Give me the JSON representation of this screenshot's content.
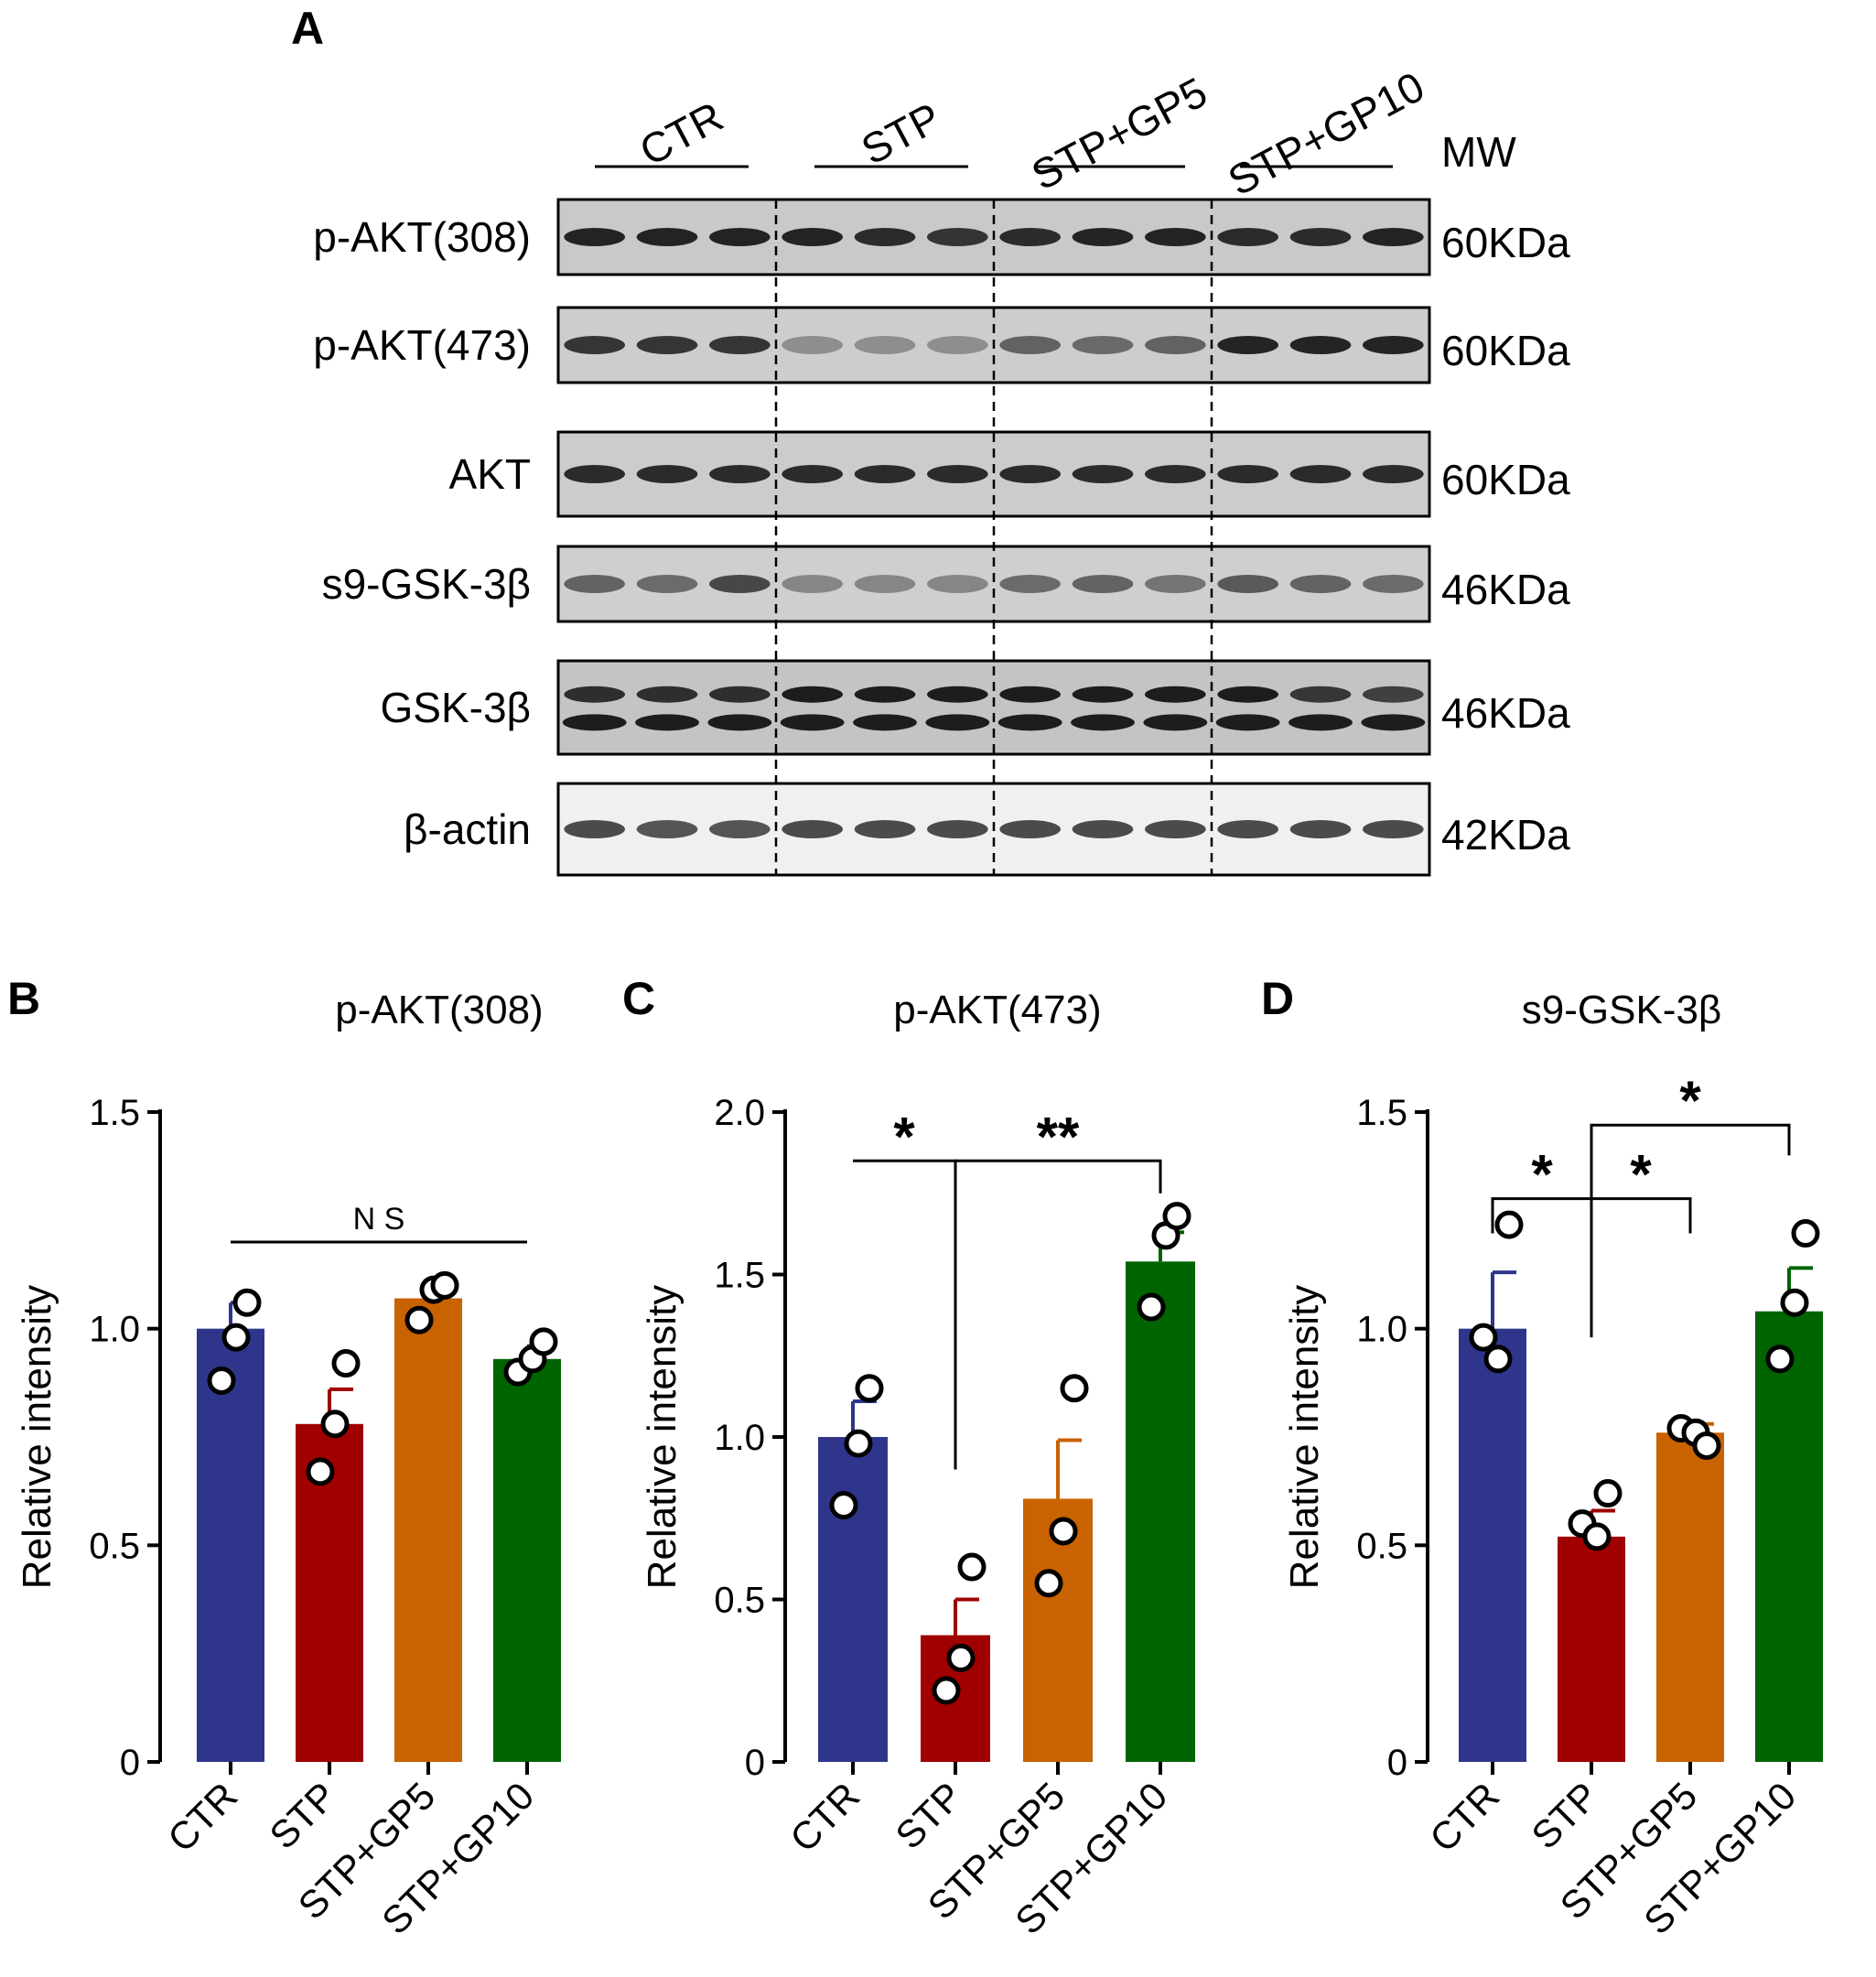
{
  "figure": {
    "panel_letters": [
      "A",
      "B",
      "C",
      "D"
    ]
  },
  "blot": {
    "groups": [
      "CTR",
      "STP",
      "STP+GP5",
      "STP+GP10"
    ],
    "mw_header": "MW",
    "lanes_per_group": 3,
    "rows": [
      {
        "label": "p-AKT(308)",
        "mw": "60KDa",
        "bg": "#c9c9c9",
        "band_color": "#1a1a1a",
        "intensity": [
          0.95,
          0.95,
          0.95,
          0.95,
          0.9,
          0.85,
          0.9,
          0.95,
          0.95,
          0.9,
          0.9,
          0.95
        ]
      },
      {
        "label": "p-AKT(473)",
        "mw": "60KDa",
        "bg": "#cdcdcd",
        "band_color": "#1a1a1a",
        "intensity": [
          0.85,
          0.85,
          0.85,
          0.35,
          0.35,
          0.35,
          0.6,
          0.55,
          0.6,
          0.95,
          0.95,
          0.95
        ]
      },
      {
        "label": "AKT",
        "mw": "60KDa",
        "bg": "#cccccc",
        "band_color": "#1a1a1a",
        "intensity": [
          0.9,
          0.9,
          0.9,
          0.9,
          0.9,
          0.9,
          0.9,
          0.9,
          0.9,
          0.9,
          0.9,
          0.9
        ]
      },
      {
        "label": "s9-GSK-3β",
        "mw": "46KDa",
        "bg": "#cfcfcf",
        "band_color": "#1a1a1a",
        "intensity": [
          0.6,
          0.55,
          0.75,
          0.4,
          0.4,
          0.4,
          0.55,
          0.6,
          0.5,
          0.65,
          0.6,
          0.55
        ]
      },
      {
        "label": "GSK-3β",
        "mw": "46KDa",
        "bg": "#c4c4c4",
        "band_color": "#141414",
        "intensity": [
          0.85,
          0.85,
          0.85,
          0.95,
          0.95,
          0.95,
          0.95,
          0.95,
          0.95,
          0.95,
          0.8,
          0.75
        ],
        "double": true
      },
      {
        "label": "β-actin",
        "mw": "42KDa",
        "bg": "#f0f0f0",
        "band_color": "#222222",
        "intensity": [
          0.8,
          0.75,
          0.75,
          0.8,
          0.8,
          0.8,
          0.8,
          0.8,
          0.8,
          0.8,
          0.8,
          0.8
        ]
      }
    ]
  },
  "chart_data": [
    {
      "panel": "B",
      "type": "bar",
      "title": "p-AKT(308)",
      "ylabel": "Relative intensity",
      "categories": [
        "CTR",
        "STP",
        "STP+GP5",
        "STP+GP10"
      ],
      "values": [
        1.0,
        0.78,
        1.07,
        0.93
      ],
      "errors": [
        0.06,
        0.08,
        0.03,
        0.03
      ],
      "points": [
        [
          0.88,
          0.98,
          1.06
        ],
        [
          0.67,
          0.78,
          0.92
        ],
        [
          1.02,
          1.09,
          1.1
        ],
        [
          0.9,
          0.93,
          0.97
        ]
      ],
      "ylim": [
        0,
        1.5
      ],
      "yticks": [
        0,
        0.5,
        1.0,
        1.5
      ],
      "ytick_labels": [
        "0",
        "0.5",
        "1.0",
        "1.5"
      ],
      "colors": [
        "#2e358b",
        "#a00000",
        "#c96200",
        "#006400"
      ],
      "annotations": [
        {
          "label": "N S",
          "from": 0,
          "to": 3,
          "y": 1.2,
          "type": "line"
        }
      ]
    },
    {
      "panel": "C",
      "type": "bar",
      "title": "p-AKT(473)",
      "ylabel": "Relative intensity",
      "categories": [
        "CTR",
        "STP",
        "STP+GP5",
        "STP+GP10"
      ],
      "values": [
        1.0,
        0.39,
        0.81,
        1.54
      ],
      "errors": [
        0.11,
        0.11,
        0.18,
        0.09
      ],
      "points": [
        [
          0.79,
          0.98,
          1.15
        ],
        [
          0.22,
          0.32,
          0.6
        ],
        [
          0.55,
          0.71,
          1.15
        ],
        [
          1.4,
          1.62,
          1.68
        ]
      ],
      "ylim": [
        0,
        2.0
      ],
      "yticks": [
        0,
        0.5,
        1.0,
        1.5,
        2.0
      ],
      "ytick_labels": [
        "0",
        "0.5",
        "1.0",
        "1.5",
        "2.0"
      ],
      "colors": [
        "#2e358b",
        "#a00000",
        "#c96200",
        "#006400"
      ],
      "annotations": [
        {
          "label": "*",
          "from": 0,
          "to": 1,
          "y": 1.85,
          "drop_from": 1.85,
          "drop_to": 0.9
        },
        {
          "label": "**",
          "from": 1,
          "to": 3,
          "y": 1.85,
          "drop_from": 0.9,
          "drop_to": 1.75
        }
      ]
    },
    {
      "panel": "D",
      "type": "bar",
      "title": "s9-GSK-3β",
      "ylabel": "Relative intensity",
      "categories": [
        "CTR",
        "STP",
        "STP+GP5",
        "STP+GP10"
      ],
      "values": [
        1.0,
        0.52,
        0.76,
        1.04
      ],
      "errors": [
        0.13,
        0.06,
        0.02,
        0.1
      ],
      "points": [
        [
          0.98,
          0.93,
          1.24
        ],
        [
          0.55,
          0.52,
          0.62
        ],
        [
          0.77,
          0.76,
          0.73
        ],
        [
          0.93,
          1.06,
          1.22
        ]
      ],
      "ylim": [
        0,
        1.5
      ],
      "yticks": [
        0,
        0.5,
        1.0,
        1.5
      ],
      "ytick_labels": [
        "0",
        "0.5",
        "1.0",
        "1.5"
      ],
      "colors": [
        "#2e358b",
        "#a00000",
        "#c96200",
        "#006400"
      ],
      "annotations": [
        {
          "label": "*",
          "from": 0,
          "to": 1,
          "y": 1.3,
          "drop_from": 1.22,
          "drop_to": 0.98
        },
        {
          "label": "*",
          "from": 1,
          "to": 2,
          "y": 1.3,
          "drop_from": 0.98,
          "drop_to": 1.22
        },
        {
          "label": "*",
          "from": 1,
          "to": 3,
          "y": 1.47,
          "drop_from": 1.3,
          "drop_to": 1.4
        }
      ]
    }
  ]
}
